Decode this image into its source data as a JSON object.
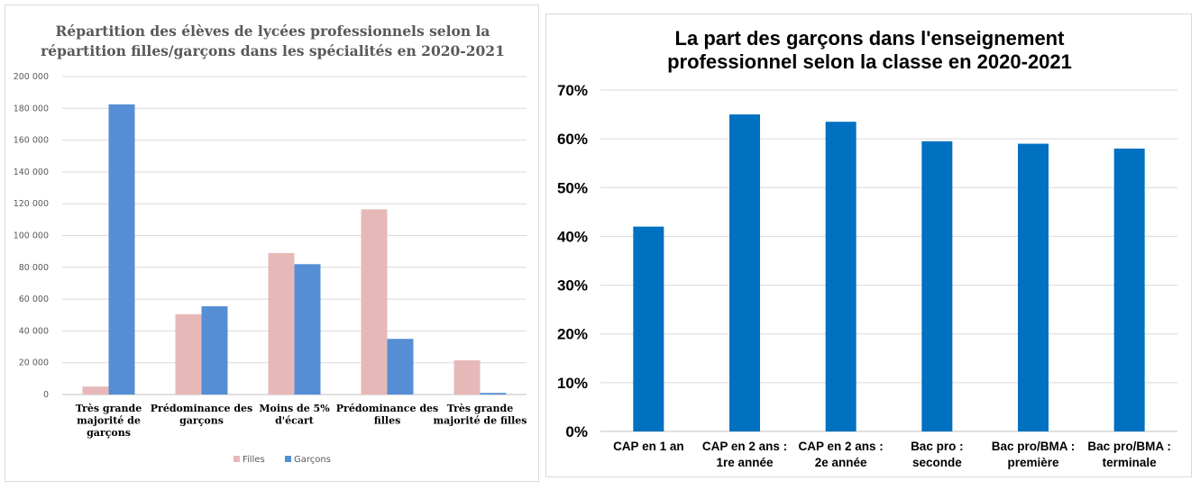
{
  "chart_data": [
    {
      "type": "bar",
      "title": "Répartition des élèves de lycées professionnels selon la répartition filles/garçons dans les spécialités en 2020-2021",
      "title_lines": [
        "Répartition des élèves de lycées professionnels selon la",
        "répartition filles/garçons dans les spécialités en 2020-2021"
      ],
      "categories": [
        [
          "Très grande",
          "majorité de",
          "garçons"
        ],
        [
          "Prédominance des",
          "garçons"
        ],
        [
          "Moins de 5%",
          "d'écart"
        ],
        [
          "Prédominance des",
          "filles"
        ],
        [
          "Très grande",
          "majorité de filles"
        ]
      ],
      "series": [
        {
          "name": "Filles",
          "color": "#e6b9b8",
          "values": [
            5000,
            50500,
            89000,
            116500,
            21500
          ]
        },
        {
          "name": "Garçons",
          "color": "#558ed5",
          "values": [
            182500,
            55500,
            82000,
            35000,
            1000
          ]
        }
      ],
      "ylim": [
        0,
        200000
      ],
      "yticks": [
        0,
        20000,
        40000,
        60000,
        80000,
        100000,
        120000,
        140000,
        160000,
        180000,
        200000
      ],
      "ytick_labels": [
        "0",
        "20 000",
        "40 000",
        "60 000",
        "80 000",
        "100 000",
        "120 000",
        "140 000",
        "160 000",
        "180 000",
        "200 000"
      ],
      "legend": "bottom",
      "xlabel": "",
      "ylabel": ""
    },
    {
      "type": "bar",
      "title": "La part des garçons dans l'enseignement professionnel selon la classe en 2020-2021",
      "title_lines": [
        "La part des garçons dans l'enseignement",
        "professionnel selon la classe en 2020-2021"
      ],
      "categories": [
        [
          "CAP en 1 an"
        ],
        [
          "CAP en 2 ans :",
          "1re année"
        ],
        [
          "CAP en 2 ans :",
          "2e année"
        ],
        [
          "Bac pro :",
          "seconde"
        ],
        [
          "Bac pro/BMA :",
          "première"
        ],
        [
          "Bac pro/BMA :",
          "terminale"
        ]
      ],
      "color": "#0070c0",
      "values": [
        42,
        65,
        63.5,
        59.5,
        59,
        58
      ],
      "ylim": [
        0,
        70
      ],
      "yticks": [
        0,
        10,
        20,
        30,
        40,
        50,
        60,
        70
      ],
      "ytick_labels": [
        "0%",
        "10%",
        "20%",
        "30%",
        "40%",
        "50%",
        "60%",
        "70%"
      ],
      "xlabel": "",
      "ylabel": ""
    }
  ]
}
